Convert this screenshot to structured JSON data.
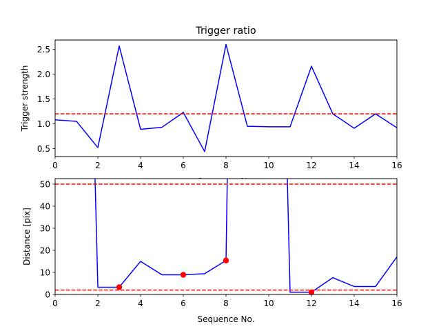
{
  "chart_data": [
    {
      "type": "line",
      "title": "Trigger ratio",
      "xlabel": "Sequence No.",
      "ylabel": "Trigger strength",
      "xlim": [
        0,
        16
      ],
      "ylim": [
        0.34,
        2.69
      ],
      "xticks": [
        0,
        2,
        4,
        6,
        8,
        10,
        12,
        14,
        16
      ],
      "yticks": [
        0.5,
        1.0,
        1.5,
        2.0,
        2.5
      ],
      "xtick_labels": [
        "0",
        "2",
        "4",
        "6",
        "8",
        "10",
        "12",
        "14",
        "16"
      ],
      "ytick_labels": [
        "0.5",
        "1.0",
        "1.5",
        "2.0",
        "2.5"
      ],
      "series": [
        {
          "color": "#0000ff",
          "style": "solid",
          "x": [
            0,
            1,
            2,
            3,
            4,
            5,
            6,
            7,
            8,
            9,
            10,
            11,
            12,
            13,
            14,
            15,
            16
          ],
          "y": [
            1.08,
            1.05,
            0.52,
            2.57,
            0.89,
            0.93,
            1.23,
            0.44,
            2.6,
            0.95,
            0.94,
            0.94,
            2.16,
            1.2,
            0.91,
            1.2,
            0.92
          ]
        }
      ],
      "reference_lines": [
        {
          "y": 1.2,
          "color": "#ff0000",
          "style": "dashed"
        }
      ]
    },
    {
      "type": "line",
      "title": "",
      "xlabel": "Sequence No.",
      "ylabel": "Distance [pix]",
      "xlim": [
        0,
        16
      ],
      "ylim": [
        0,
        52.5
      ],
      "xticks": [
        0,
        2,
        4,
        6,
        8,
        10,
        12,
        14,
        16
      ],
      "yticks": [
        0,
        10,
        20,
        30,
        40,
        50
      ],
      "xtick_labels": [
        "0",
        "2",
        "4",
        "6",
        "8",
        "10",
        "12",
        "14",
        "16"
      ],
      "ytick_labels": [
        "0",
        "10",
        "20",
        "30",
        "40",
        "50"
      ],
      "series": [
        {
          "color": "#0000ff",
          "style": "solid",
          "x": [
            1.87,
            2,
            3,
            4,
            5,
            6,
            7,
            8,
            8.06
          ],
          "y": [
            52.5,
            3.3,
            3.3,
            15,
            8.9,
            8.9,
            9.4,
            15.4,
            52.5
          ]
        },
        {
          "color": "#0000ff",
          "style": "solid",
          "x": [
            10.87,
            11,
            12,
            13,
            14,
            15,
            16
          ],
          "y": [
            52.5,
            1.0,
            1.0,
            7.6,
            3.6,
            3.6,
            17
          ]
        }
      ],
      "points": {
        "color": "#ff0000",
        "x": [
          3,
          6,
          8,
          12
        ],
        "y": [
          3.3,
          8.9,
          15.4,
          1.0
        ]
      },
      "reference_lines": [
        {
          "y": 50,
          "color": "#ff0000",
          "style": "dashed"
        },
        {
          "y": 2,
          "color": "#ff0000",
          "style": "dashed"
        }
      ]
    }
  ]
}
